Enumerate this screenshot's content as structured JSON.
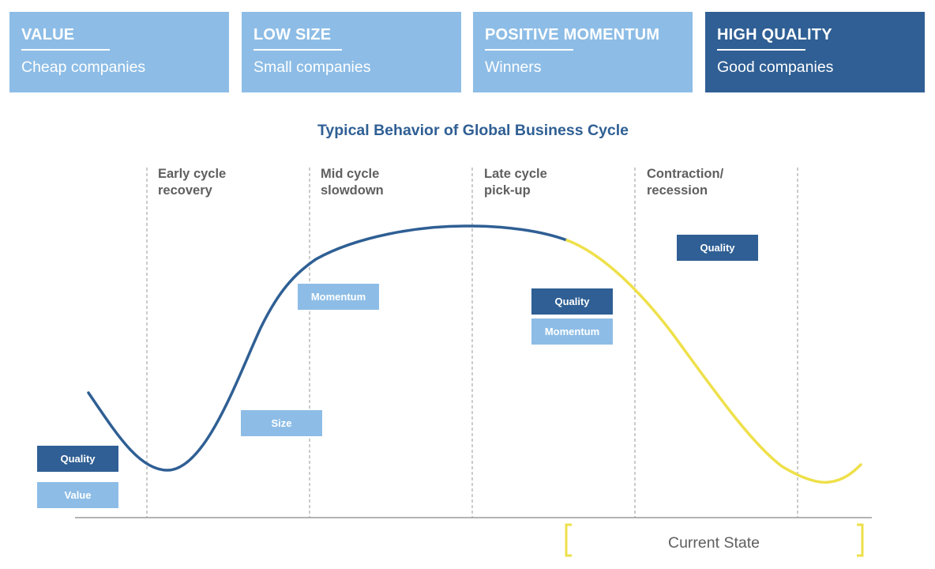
{
  "factor_cards": [
    {
      "title": "VALUE",
      "subtitle": "Cheap companies",
      "style": "light"
    },
    {
      "title": "LOW SIZE",
      "subtitle": "Small companies",
      "style": "light"
    },
    {
      "title": "POSITIVE MOMENTUM",
      "subtitle": "Winners",
      "style": "light"
    },
    {
      "title": "HIGH QUALITY",
      "subtitle": "Good companies",
      "style": "dark"
    }
  ],
  "diagram": {
    "title": "Typical Behavior of Global Business Cycle",
    "phases": [
      {
        "line1": "Early cycle",
        "line2": "recovery"
      },
      {
        "line1": "Mid cycle",
        "line2": "slowdown"
      },
      {
        "line1": "Late cycle",
        "line2": "pick-up"
      },
      {
        "line1": "Contraction/",
        "line2": "recession"
      }
    ],
    "tags": {
      "trough_quality": "Quality",
      "trough_value": "Value",
      "early_size": "Size",
      "mid_momentum": "Momentum",
      "late_quality": "Quality",
      "late_momentum": "Momentum",
      "contraction_quality": "Quality"
    },
    "current_state_label": "Current State"
  },
  "colors": {
    "light_blue": "#8dbde6",
    "dark_blue": "#2f5f94",
    "curve_past": "#2f5f94",
    "curve_current": "#eee04a",
    "bracket": "#eee04a",
    "divider": "#9a9a9a",
    "label_gray": "#5f5f5f"
  }
}
